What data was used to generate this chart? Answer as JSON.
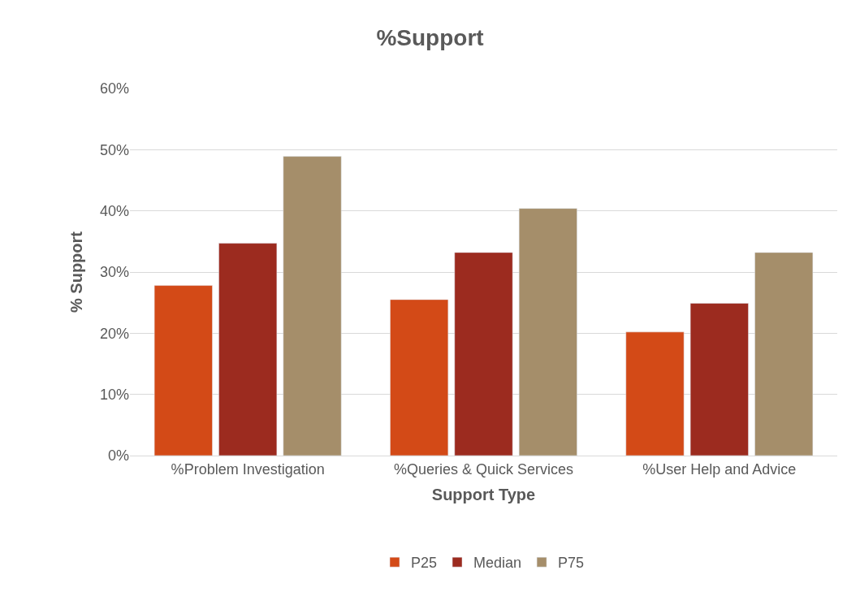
{
  "chart_data": {
    "type": "bar",
    "title": "%Support",
    "xlabel": "Support Type",
    "ylabel": "% Support",
    "categories": [
      "%Problem Investigation",
      "%Queries & Quick Services",
      "%User Help and Advice"
    ],
    "series": [
      {
        "name": "P25",
        "color": "#d34a17",
        "values": [
          27.8,
          25.5,
          20.2
        ]
      },
      {
        "name": "Median",
        "color": "#9c2b1f",
        "values": [
          34.7,
          33.2,
          24.9
        ]
      },
      {
        "name": "P75",
        "color": "#a58e6a",
        "values": [
          48.9,
          40.4,
          33.2
        ]
      }
    ],
    "ylim": [
      0,
      60
    ],
    "yticks": [
      {
        "value": 0,
        "label": "0%"
      },
      {
        "value": 10,
        "label": "10%"
      },
      {
        "value": 20,
        "label": "20%"
      },
      {
        "value": 30,
        "label": "30%"
      },
      {
        "value": 40,
        "label": "40%"
      },
      {
        "value": 50,
        "label": "50%"
      },
      {
        "value": 60,
        "label": "60%"
      }
    ],
    "grid": "y",
    "legend": "bottom"
  }
}
